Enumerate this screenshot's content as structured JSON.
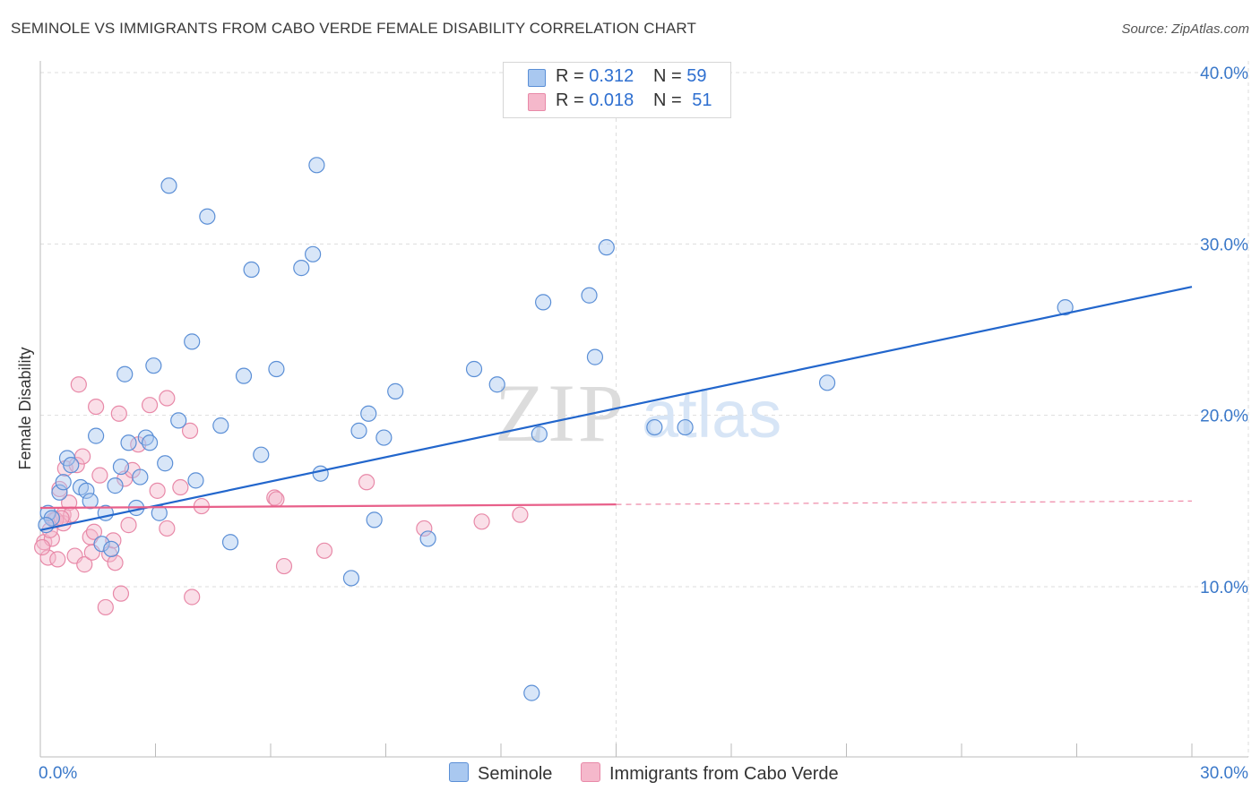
{
  "title": "SEMINOLE VS IMMIGRANTS FROM CABO VERDE FEMALE DISABILITY CORRELATION CHART",
  "source": "Source: ZipAtlas.com",
  "watermark": {
    "zip": "ZIP",
    "atlas": "atlas"
  },
  "colors": {
    "blue_fill": "#a9c8f0",
    "blue_stroke": "#5b8fd6",
    "blue_line": "#2266cc",
    "pink_fill": "#f5b8cb",
    "pink_stroke": "#e889a8",
    "pink_line": "#e8608a",
    "grid": "#dddddd",
    "axis_text": "#3a78c9"
  },
  "legend_top": [
    {
      "r_label": "R =",
      "r_value": "0.312",
      "n_label": "N =",
      "n_value": "59"
    },
    {
      "r_label": "R =",
      "r_value": "0.018",
      "n_label": "N =",
      "n_value": "51"
    }
  ],
  "legend_bottom": [
    {
      "label": "Seminole"
    },
    {
      "label": "Immigrants from Cabo Verde"
    }
  ],
  "chart_data": {
    "type": "scatter",
    "ylabel": "Female Disability",
    "xlabel": "",
    "xlim": [
      0,
      30
    ],
    "ylim": [
      0,
      42
    ],
    "x_tick_labels": [
      "0.0%",
      "30.0%"
    ],
    "y_ticks": [
      10,
      20,
      30,
      40
    ],
    "y_tick_labels": [
      "10.0%",
      "20.0%",
      "30.0%",
      "40.0%"
    ],
    "grid": true,
    "series": [
      {
        "name": "Seminole",
        "R": 0.312,
        "N": 59,
        "trend": {
          "x": [
            0,
            30
          ],
          "y": [
            13.3,
            27.5
          ],
          "dashed_from": null
        },
        "points": [
          [
            0.2,
            14.3
          ],
          [
            0.3,
            14.0
          ],
          [
            0.5,
            15.5
          ],
          [
            0.6,
            16.1
          ],
          [
            0.7,
            17.5
          ],
          [
            0.8,
            17.1
          ],
          [
            1.05,
            15.8
          ],
          [
            1.2,
            15.6
          ],
          [
            1.3,
            15.0
          ],
          [
            1.45,
            18.8
          ],
          [
            1.6,
            12.5
          ],
          [
            1.7,
            14.3
          ],
          [
            1.85,
            12.2
          ],
          [
            1.95,
            15.9
          ],
          [
            2.1,
            17.0
          ],
          [
            2.2,
            22.4
          ],
          [
            2.3,
            18.4
          ],
          [
            2.5,
            14.6
          ],
          [
            2.6,
            16.4
          ],
          [
            2.75,
            18.7
          ],
          [
            2.85,
            18.4
          ],
          [
            2.95,
            22.9
          ],
          [
            3.1,
            14.3
          ],
          [
            3.25,
            17.2
          ],
          [
            3.35,
            33.4
          ],
          [
            3.6,
            19.7
          ],
          [
            3.95,
            24.3
          ],
          [
            4.05,
            16.2
          ],
          [
            4.35,
            31.6
          ],
          [
            4.7,
            19.4
          ],
          [
            4.95,
            12.6
          ],
          [
            5.3,
            22.3
          ],
          [
            5.5,
            28.5
          ],
          [
            5.75,
            17.7
          ],
          [
            6.15,
            22.7
          ],
          [
            6.8,
            28.6
          ],
          [
            7.1,
            29.4
          ],
          [
            7.2,
            34.6
          ],
          [
            7.3,
            16.6
          ],
          [
            8.1,
            10.5
          ],
          [
            8.3,
            19.1
          ],
          [
            8.55,
            20.1
          ],
          [
            8.7,
            13.9
          ],
          [
            8.95,
            18.7
          ],
          [
            9.25,
            21.4
          ],
          [
            10.1,
            12.8
          ],
          [
            11.3,
            22.7
          ],
          [
            11.9,
            21.8
          ],
          [
            12.8,
            3.8
          ],
          [
            13.0,
            18.9
          ],
          [
            13.1,
            26.6
          ],
          [
            14.3,
            27.0
          ],
          [
            14.45,
            23.4
          ],
          [
            14.75,
            29.8
          ],
          [
            16.0,
            19.3
          ],
          [
            16.8,
            19.3
          ],
          [
            20.5,
            21.9
          ],
          [
            26.7,
            26.3
          ],
          [
            0.15,
            13.6
          ]
        ]
      },
      {
        "name": "Immigrants from Cabo Verde",
        "R": 0.018,
        "N": 51,
        "trend": {
          "x": [
            0,
            30
          ],
          "y": [
            14.6,
            15.0
          ],
          "dashed_from": 15
        },
        "points": [
          [
            0.1,
            12.6
          ],
          [
            0.2,
            11.7
          ],
          [
            0.3,
            12.8
          ],
          [
            0.35,
            13.9
          ],
          [
            0.45,
            11.6
          ],
          [
            0.5,
            15.7
          ],
          [
            0.6,
            14.2
          ],
          [
            0.6,
            13.7
          ],
          [
            0.65,
            16.9
          ],
          [
            0.75,
            14.9
          ],
          [
            0.8,
            14.2
          ],
          [
            0.9,
            11.8
          ],
          [
            0.95,
            17.1
          ],
          [
            1.0,
            21.8
          ],
          [
            1.1,
            17.6
          ],
          [
            1.15,
            11.3
          ],
          [
            1.3,
            12.9
          ],
          [
            1.35,
            12.0
          ],
          [
            1.4,
            13.2
          ],
          [
            1.45,
            20.5
          ],
          [
            1.55,
            16.5
          ],
          [
            1.7,
            8.8
          ],
          [
            1.8,
            11.9
          ],
          [
            1.9,
            12.7
          ],
          [
            1.95,
            11.4
          ],
          [
            2.05,
            20.1
          ],
          [
            2.1,
            9.6
          ],
          [
            2.2,
            16.3
          ],
          [
            2.3,
            13.6
          ],
          [
            2.4,
            16.8
          ],
          [
            2.55,
            18.3
          ],
          [
            2.85,
            20.6
          ],
          [
            3.05,
            15.6
          ],
          [
            3.3,
            13.4
          ],
          [
            3.3,
            21.0
          ],
          [
            3.65,
            15.8
          ],
          [
            3.9,
            19.1
          ],
          [
            3.95,
            9.4
          ],
          [
            4.2,
            14.7
          ],
          [
            6.1,
            15.2
          ],
          [
            6.15,
            15.1
          ],
          [
            6.35,
            11.2
          ],
          [
            7.4,
            12.1
          ],
          [
            8.5,
            16.1
          ],
          [
            10.0,
            13.4
          ],
          [
            11.5,
            13.8
          ],
          [
            12.5,
            14.2
          ],
          [
            0.05,
            12.3
          ],
          [
            0.25,
            13.3
          ],
          [
            0.4,
            13.9
          ],
          [
            0.55,
            14.0
          ]
        ]
      }
    ]
  }
}
